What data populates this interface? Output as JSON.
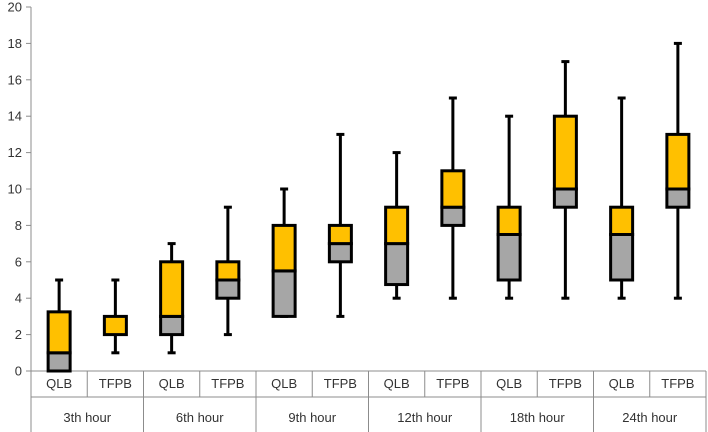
{
  "chart_data": {
    "type": "boxplot",
    "title": "",
    "xlabel": "",
    "ylabel": "",
    "ylim": [
      0,
      20
    ],
    "yticks": [
      0,
      2,
      4,
      6,
      8,
      10,
      12,
      14,
      16,
      18,
      20
    ],
    "groups": [
      "3th hour",
      "6th hour",
      "9th hour",
      "12th hour",
      "18th hour",
      "24th hour"
    ],
    "subcategories": [
      "QLB",
      "TFPB"
    ],
    "colors": {
      "upper": "#FFC000",
      "lower": "#A6A6A6",
      "outline": "#000000",
      "axis": "#8C8C8C"
    },
    "boxes": [
      {
        "group": "3th hour",
        "label": "QLB",
        "min": 0,
        "q1": 0,
        "median": 1,
        "q3": 3.25,
        "max": 5
      },
      {
        "group": "3th hour",
        "label": "TFPB",
        "min": 1,
        "q1": 2,
        "median": 2,
        "q3": 3,
        "max": 5
      },
      {
        "group": "6th hour",
        "label": "QLB",
        "min": 1,
        "q1": 2,
        "median": 3,
        "q3": 6,
        "max": 7
      },
      {
        "group": "6th hour",
        "label": "TFPB",
        "min": 2,
        "q1": 4,
        "median": 5,
        "q3": 6,
        "max": 9
      },
      {
        "group": "9th hour",
        "label": "QLB",
        "min": 3,
        "q1": 3,
        "median": 5.5,
        "q3": 8,
        "max": 10
      },
      {
        "group": "9th hour",
        "label": "TFPB",
        "min": 3,
        "q1": 6,
        "median": 7,
        "q3": 8,
        "max": 13
      },
      {
        "group": "12th hour",
        "label": "QLB",
        "min": 4,
        "q1": 4.75,
        "median": 7,
        "q3": 9,
        "max": 12
      },
      {
        "group": "12th hour",
        "label": "TFPB",
        "min": 4,
        "q1": 8,
        "median": 9,
        "q3": 11,
        "max": 15
      },
      {
        "group": "18th hour",
        "label": "QLB",
        "min": 4,
        "q1": 5,
        "median": 7.5,
        "q3": 9,
        "max": 14
      },
      {
        "group": "18th hour",
        "label": "TFPB",
        "min": 4,
        "q1": 9,
        "median": 10,
        "q3": 14,
        "max": 17
      },
      {
        "group": "24th hour",
        "label": "QLB",
        "min": 4,
        "q1": 5,
        "median": 7.5,
        "q3": 9,
        "max": 15
      },
      {
        "group": "24th hour",
        "label": "TFPB",
        "min": 4,
        "q1": 9,
        "median": 10,
        "q3": 13,
        "max": 18
      }
    ]
  }
}
